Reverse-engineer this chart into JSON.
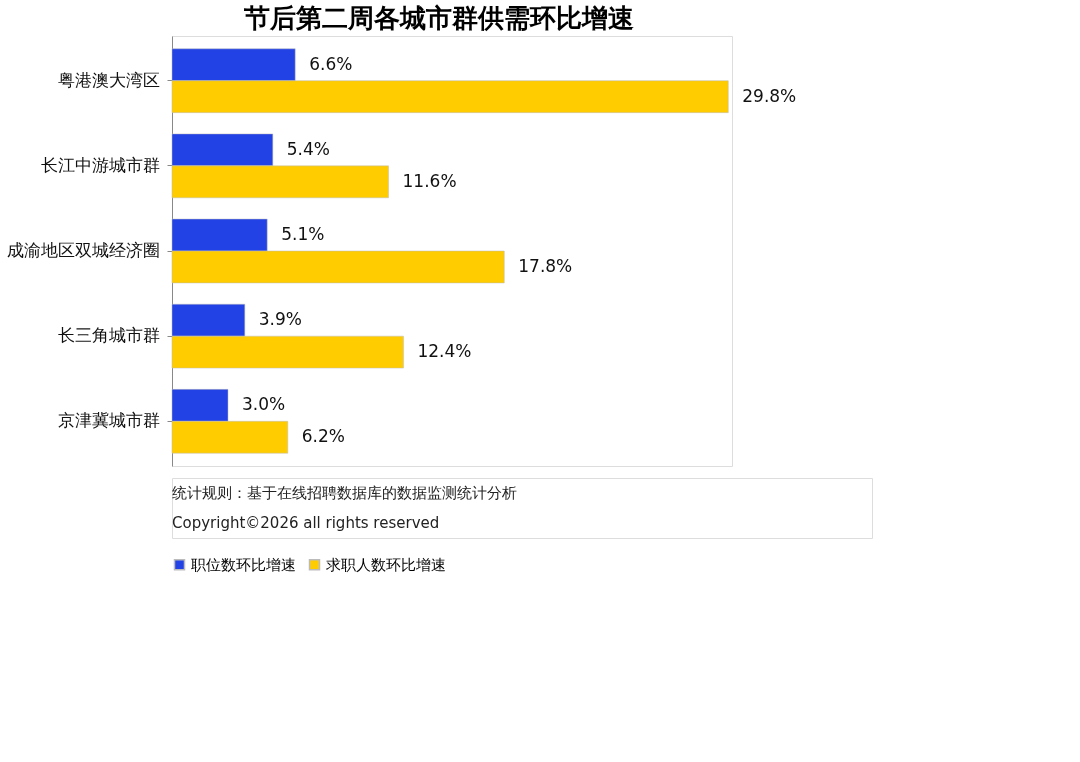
{
  "chart_data": {
    "type": "bar",
    "orientation": "horizontal",
    "title": "节后第二周各城市群供需环比增速",
    "categories": [
      "粤港澳大湾区",
      "长江中游城市群",
      "成渝地区双城经济圈",
      "长三角城市群",
      "京津冀城市群"
    ],
    "series": [
      {
        "name": "职位数环比增速",
        "color": "#2342e6",
        "values": [
          6.6,
          5.4,
          5.1,
          3.9,
          3.0
        ],
        "value_labels": [
          "6.6%",
          "5.4%",
          "5.1%",
          "3.9%",
          "3.0%"
        ]
      },
      {
        "name": "求职人数环比增速",
        "color": "#ffcc00",
        "values": [
          29.8,
          11.6,
          17.8,
          12.4,
          6.2
        ],
        "value_labels": [
          "29.8%",
          "11.6%",
          "17.8%",
          "12.4%",
          "6.2%"
        ]
      }
    ],
    "legend": "bottom",
    "grid": false,
    "annotations": [
      "统计规则：基于在线招聘数据库的数据监测统计分析",
      "Copyright©2026 all rights reserved"
    ]
  }
}
